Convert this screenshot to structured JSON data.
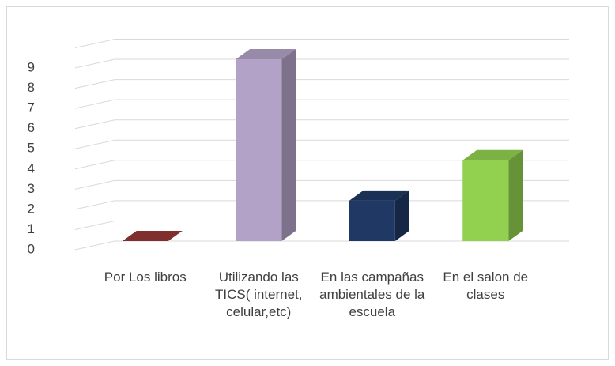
{
  "chart_data": {
    "type": "bar3d",
    "categories": [
      "Por Los libros",
      "Utilizando las TICS( internet, celular,etc)",
      "En las campañas ambientales de la escuela",
      "En el salon de clases"
    ],
    "values": [
      0,
      9,
      2,
      4
    ],
    "colors": [
      "#953735",
      "#b3a2c7",
      "#1f3864",
      "#92d050"
    ],
    "ylim": [
      0,
      10
    ],
    "yticks": [
      0,
      1,
      2,
      3,
      4,
      5,
      6,
      7,
      8,
      9
    ],
    "grid": true
  }
}
